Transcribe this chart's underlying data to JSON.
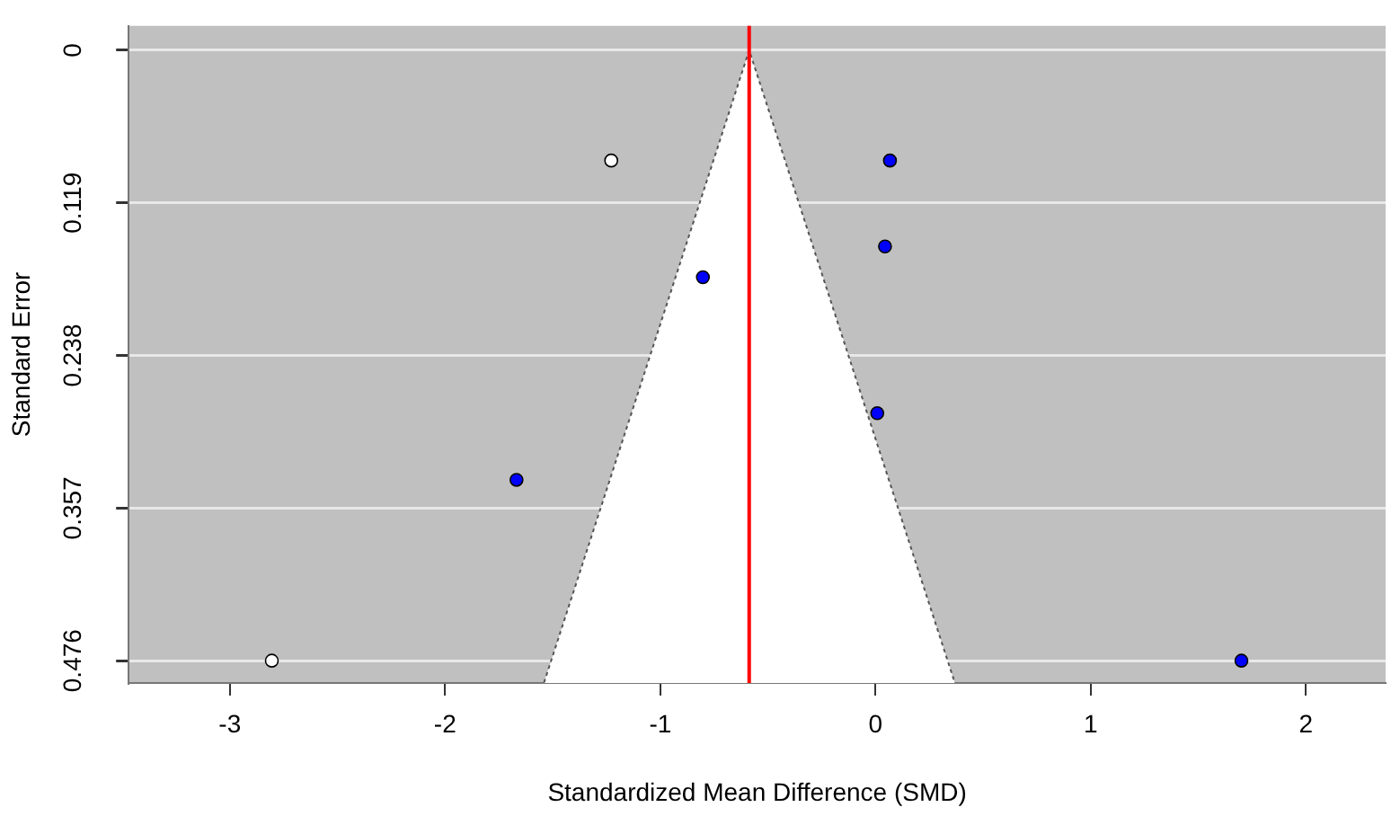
{
  "chart_data": {
    "type": "scatter",
    "xlabel": "Standardized Mean Difference (SMD)",
    "ylabel": "Standard Error",
    "xlim": [
      -3.47,
      2.37
    ],
    "xticks": [
      -3,
      -2,
      -1,
      0,
      1,
      2
    ],
    "ylim": [
      0.4934,
      -0.019
    ],
    "yticks": [
      0,
      0.119,
      0.238,
      0.357,
      0.476
    ],
    "grid": "y",
    "legend": false,
    "marker": "circle",
    "series": [
      {
        "type": "area",
        "color": "#555555",
        "line_style": "dotted",
        "marker": "none",
        "x": [
          -1.54,
          -0.587,
          0.368
        ],
        "values": [
          0.493,
          0,
          0.493
        ]
      },
      {
        "color": "#0000ff",
        "x": [
          0.067,
          0.044,
          -0.802,
          0.008,
          -1.668,
          1.7
        ],
        "values": [
          0.086,
          0.153,
          0.177,
          0.283,
          0.335,
          0.476
        ]
      },
      {
        "color": "#ffffff",
        "x": [
          -1.228,
          -2.805
        ],
        "values": [
          0.086,
          0.476
        ]
      }
    ],
    "ref_lines": [
      {
        "axis": "x",
        "value": -0.587,
        "color": "#ff0000"
      }
    ]
  }
}
